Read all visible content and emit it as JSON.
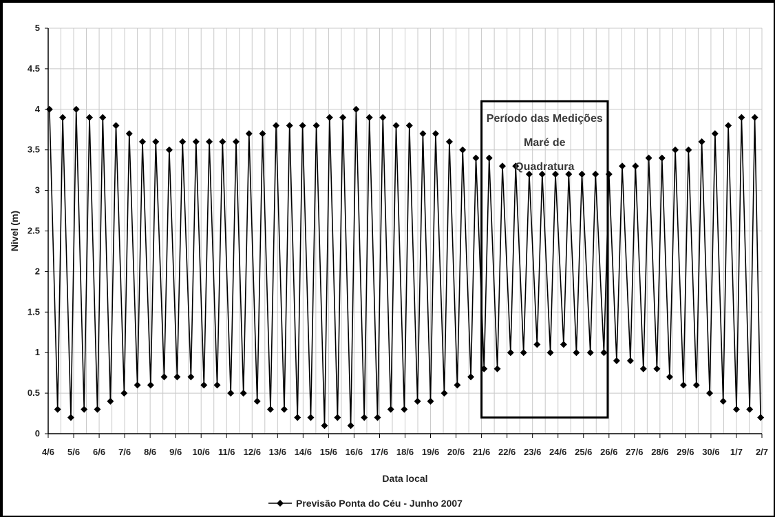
{
  "chart_data": {
    "type": "line",
    "xlabel": "Data local",
    "ylabel": "Nivel (m)",
    "ylim": [
      0,
      5
    ],
    "yticks": [
      "0",
      "0.5",
      "1",
      "1.5",
      "2",
      "2.5",
      "3",
      "3.5",
      "4",
      "4.5",
      "5"
    ],
    "xticks": [
      "4/6",
      "5/6",
      "6/6",
      "7/6",
      "8/6",
      "9/6",
      "10/6",
      "11/6",
      "12/6",
      "13/6",
      "14/6",
      "15/6",
      "16/6",
      "17/6",
      "18/6",
      "19/6",
      "20/6",
      "21/6",
      "22/6",
      "23/6",
      "24/6",
      "25/6",
      "26/6",
      "27/6",
      "28/6",
      "29/6",
      "30/6",
      "1/7",
      "2/7"
    ],
    "xlim_days": [
      0,
      28
    ],
    "grid": true,
    "legend_position": "bottom",
    "series": [
      {
        "name": "Previsão Ponta do Céu - Junho 2007",
        "color": "#000000",
        "marker": "diamond",
        "x": [
          0.05,
          0.37,
          0.57,
          0.89,
          1.1,
          1.41,
          1.62,
          1.93,
          2.14,
          2.44,
          2.66,
          2.98,
          3.18,
          3.5,
          3.7,
          4.02,
          4.22,
          4.55,
          4.75,
          5.06,
          5.27,
          5.6,
          5.8,
          6.11,
          6.32,
          6.63,
          6.84,
          7.16,
          7.37,
          7.66,
          7.88,
          8.2,
          8.41,
          8.72,
          8.94,
          9.26,
          9.47,
          9.78,
          9.98,
          10.3,
          10.52,
          10.84,
          11.04,
          11.35,
          11.56,
          11.87,
          12.08,
          12.4,
          12.6,
          12.92,
          13.13,
          13.44,
          13.65,
          13.97,
          14.17,
          14.49,
          14.7,
          15.0,
          15.2,
          15.54,
          15.74,
          16.05,
          16.26,
          16.58,
          16.78,
          17.1,
          17.3,
          17.62,
          17.82,
          18.14,
          18.34,
          18.65,
          18.87,
          19.18,
          19.38,
          19.7,
          19.9,
          20.22,
          20.42,
          20.72,
          20.94,
          21.27,
          21.47,
          21.8,
          22.0,
          22.3,
          22.52,
          22.84,
          23.04,
          23.35,
          23.56,
          23.88,
          24.08,
          24.38,
          24.6,
          24.92,
          25.12,
          25.43,
          25.64,
          25.95,
          26.16,
          26.48,
          26.68,
          27.0,
          27.2,
          27.52,
          27.72,
          27.95
        ],
        "y": [
          4.0,
          0.3,
          3.9,
          0.2,
          4.0,
          0.3,
          3.9,
          0.3,
          3.9,
          0.4,
          3.8,
          0.5,
          3.7,
          0.6,
          3.6,
          0.6,
          3.6,
          0.7,
          3.5,
          0.7,
          3.6,
          0.7,
          3.6,
          0.6,
          3.6,
          0.6,
          3.6,
          0.5,
          3.6,
          0.5,
          3.7,
          0.4,
          3.7,
          0.3,
          3.8,
          0.3,
          3.8,
          0.2,
          3.8,
          0.2,
          3.8,
          0.1,
          3.9,
          0.2,
          3.9,
          0.1,
          4.0,
          0.2,
          3.9,
          0.2,
          3.9,
          0.3,
          3.8,
          0.3,
          3.8,
          0.4,
          3.7,
          0.4,
          3.7,
          0.5,
          3.6,
          0.6,
          3.5,
          0.7,
          3.4,
          0.8,
          3.4,
          0.8,
          3.3,
          1.0,
          3.3,
          1.0,
          3.2,
          1.1,
          3.2,
          1.0,
          3.2,
          1.1,
          3.2,
          1.0,
          3.2,
          1.0,
          3.2,
          1.0,
          3.2,
          0.9,
          3.3,
          0.9,
          3.3,
          0.8,
          3.4,
          0.8,
          3.4,
          0.7,
          3.5,
          0.6,
          3.5,
          0.6,
          3.6,
          0.5,
          3.7,
          0.4,
          3.8,
          0.3,
          3.9,
          0.3,
          3.9,
          0.2
        ]
      }
    ],
    "annotation_box": {
      "lines": [
        "Período das Medições",
        "Maré de",
        "Quadratura"
      ],
      "x_range_days": [
        17.0,
        21.95
      ],
      "y_range": [
        0.2,
        4.1
      ]
    }
  }
}
